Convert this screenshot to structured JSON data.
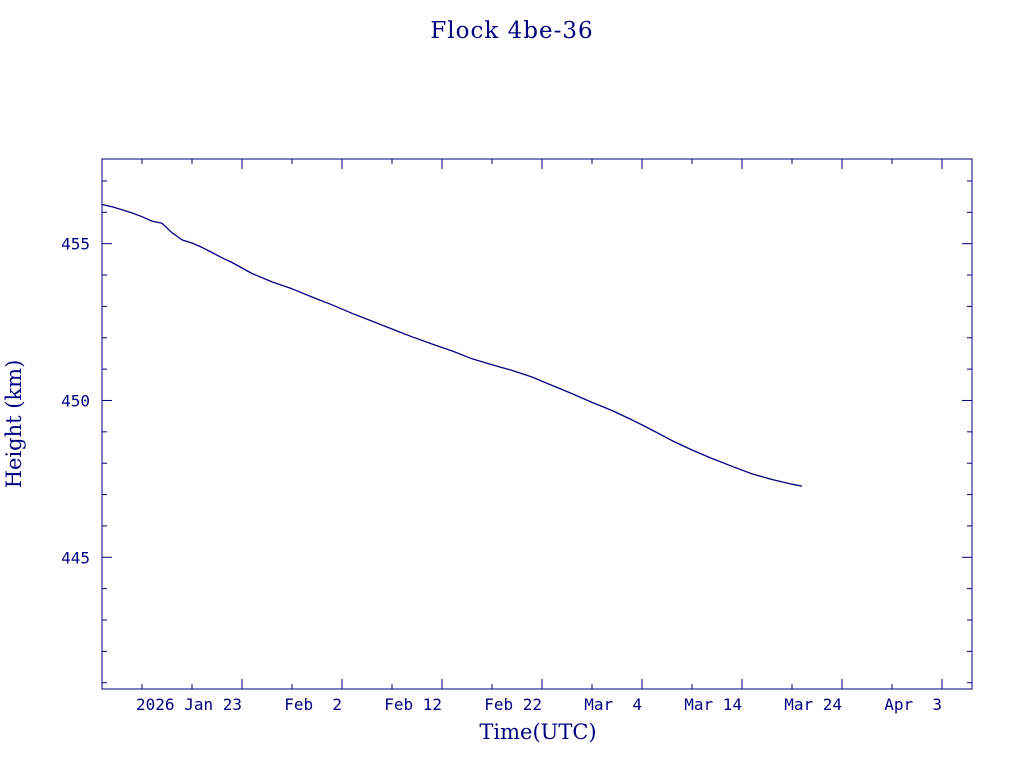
{
  "chart_data": {
    "type": "line",
    "title": "Flock 4be-36",
    "xlabel": "Time(UTC)",
    "ylabel": "Height (km)",
    "color": "#000080",
    "xlim": [
      "2026-01-09",
      "2026-04-06"
    ],
    "ylim": [
      440.8,
      457.7
    ],
    "grid": false,
    "x_ticks": [
      {
        "date": "2026-01-23",
        "label": "2026 Jan 23"
      },
      {
        "date": "2026-02-02",
        "label": "Feb  2"
      },
      {
        "date": "2026-02-12",
        "label": "Feb 12"
      },
      {
        "date": "2026-02-22",
        "label": "Feb 22"
      },
      {
        "date": "2026-03-04",
        "label": "Mar  4"
      },
      {
        "date": "2026-03-14",
        "label": "Mar 14"
      },
      {
        "date": "2026-03-24",
        "label": "Mar 24"
      },
      {
        "date": "2026-04-03",
        "label": "Apr  3"
      }
    ],
    "y_ticks": [
      {
        "value": 445,
        "label": "445"
      },
      {
        "value": 450,
        "label": "450"
      },
      {
        "value": 455,
        "label": "455"
      }
    ],
    "series": [
      {
        "x": [
          "2026-01-09",
          "2026-01-10",
          "2026-01-11",
          "2026-01-12",
          "2026-01-13",
          "2026-01-14",
          "2026-01-15",
          "2026-01-16",
          "2026-01-17",
          "2026-01-18",
          "2026-01-19",
          "2026-01-20",
          "2026-01-21",
          "2026-01-22",
          "2026-01-24",
          "2026-01-26",
          "2026-01-28",
          "2026-01-30",
          "2026-02-01",
          "2026-02-03",
          "2026-02-05",
          "2026-02-07",
          "2026-02-09",
          "2026-02-11",
          "2026-02-13",
          "2026-02-15",
          "2026-02-17",
          "2026-02-19",
          "2026-02-21",
          "2026-02-23",
          "2026-02-25",
          "2026-02-27",
          "2026-03-01",
          "2026-03-03",
          "2026-03-05",
          "2026-03-07",
          "2026-03-09",
          "2026-03-11",
          "2026-03-13",
          "2026-03-15",
          "2026-03-17",
          "2026-03-19",
          "2026-03-20"
        ],
        "y": [
          456.25,
          456.18,
          456.08,
          455.98,
          455.86,
          455.72,
          455.65,
          455.35,
          455.12,
          455.02,
          454.88,
          454.72,
          454.55,
          454.4,
          454.05,
          453.78,
          453.56,
          453.3,
          453.05,
          452.78,
          452.53,
          452.28,
          452.03,
          451.8,
          451.58,
          451.33,
          451.14,
          450.96,
          450.75,
          450.48,
          450.22,
          449.94,
          449.68,
          449.38,
          449.06,
          448.72,
          448.42,
          448.15,
          447.9,
          447.66,
          447.48,
          447.33,
          447.27
        ]
      }
    ]
  }
}
